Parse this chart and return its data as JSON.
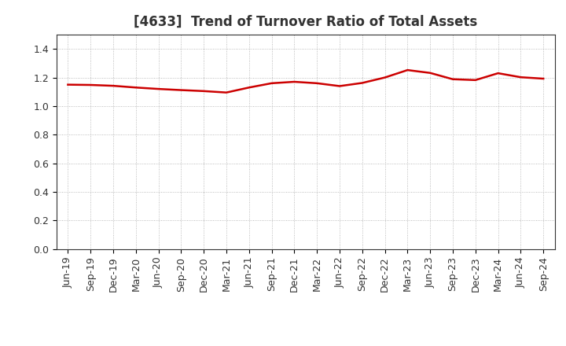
{
  "title": "[4633]  Trend of Turnover Ratio of Total Assets",
  "x_labels": [
    "Jun-19",
    "Sep-19",
    "Dec-19",
    "Mar-20",
    "Jun-20",
    "Sep-20",
    "Dec-20",
    "Mar-21",
    "Jun-21",
    "Sep-21",
    "Dec-21",
    "Mar-22",
    "Jun-22",
    "Sep-22",
    "Dec-22",
    "Mar-23",
    "Jun-23",
    "Sep-23",
    "Dec-23",
    "Mar-24",
    "Jun-24",
    "Sep-24"
  ],
  "values": [
    1.15,
    1.148,
    1.142,
    1.13,
    1.12,
    1.112,
    1.105,
    1.095,
    1.13,
    1.16,
    1.17,
    1.16,
    1.14,
    1.162,
    1.2,
    1.252,
    1.232,
    1.188,
    1.182,
    1.23,
    1.202,
    1.192
  ],
  "line_color": "#cc0000",
  "line_width": 1.8,
  "background_color": "#ffffff",
  "plot_bg_color": "#ffffff",
  "grid_color": "#aaaaaa",
  "ylim": [
    0.0,
    1.5
  ],
  "yticks": [
    0.0,
    0.2,
    0.4,
    0.6,
    0.8,
    1.0,
    1.2,
    1.4
  ],
  "title_fontsize": 12,
  "tick_fontsize": 9,
  "title_color": "#333333"
}
